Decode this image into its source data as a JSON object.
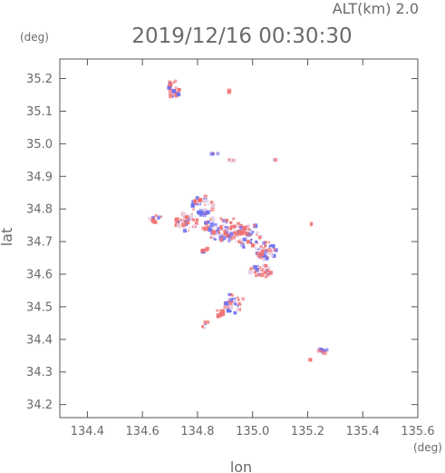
{
  "chart_data": {
    "type": "scatter",
    "title": "2019/12/16 00:30:30",
    "altitude_label": "ALT(km)  2.0",
    "xlabel": "lon",
    "ylabel": "lat",
    "x_unit": "(deg)",
    "y_unit": "(deg)",
    "xlim": [
      134.3,
      135.6
    ],
    "ylim": [
      34.16,
      35.26
    ],
    "x_ticks": [
      134.4,
      134.6,
      134.8,
      135.0,
      135.2,
      135.4,
      135.6
    ],
    "x_tick_labels": [
      "134.4",
      "134.6",
      "134.8",
      "135.0",
      "135.2",
      "135.4",
      "135.6"
    ],
    "y_ticks": [
      34.2,
      34.3,
      34.4,
      34.5,
      34.6,
      34.7,
      34.8,
      34.9,
      35.0,
      35.1,
      35.2
    ],
    "y_tick_labels": [
      "34.2",
      "34.3",
      "34.4",
      "34.5",
      "34.6",
      "34.7",
      "34.8",
      "34.9",
      "35.0",
      "35.1",
      "35.2"
    ],
    "colors": {
      "negative": "#6f6ff0",
      "positive": "#f07070",
      "weak": "#e6cfe6",
      "axis": "#555555",
      "text": "#6a6a6a"
    },
    "clusters": [
      {
        "lon": 134.71,
        "lat": 35.165,
        "rlon": 0.025,
        "rlat": 0.03,
        "n": 26,
        "bias": 0.45,
        "mix": 0.55
      },
      {
        "lon": 134.915,
        "lat": 35.16,
        "rlon": 0.004,
        "rlat": 0.004,
        "n": 2,
        "bias": 0.0,
        "mix": 0.2
      },
      {
        "lon": 134.86,
        "lat": 34.97,
        "rlon": 0.014,
        "rlat": 0.005,
        "n": 6,
        "bias": 0.1,
        "mix": 0.4
      },
      {
        "lon": 134.925,
        "lat": 34.95,
        "rlon": 0.01,
        "rlat": 0.004,
        "n": 5,
        "bias": 0.8,
        "mix": 0.3
      },
      {
        "lon": 135.08,
        "lat": 34.95,
        "rlon": 0.008,
        "rlat": 0.004,
        "n": 4,
        "bias": 0.7,
        "mix": 0.3
      },
      {
        "lon": 134.82,
        "lat": 34.81,
        "rlon": 0.04,
        "rlat": 0.03,
        "n": 40,
        "bias": 0.15,
        "mix": 0.5
      },
      {
        "lon": 134.65,
        "lat": 34.77,
        "rlon": 0.025,
        "rlat": 0.012,
        "n": 14,
        "bias": 0.2,
        "mix": 0.45
      },
      {
        "lon": 134.76,
        "lat": 34.76,
        "rlon": 0.04,
        "rlat": 0.03,
        "n": 45,
        "bias": 0.5,
        "mix": 0.55
      },
      {
        "lon": 134.89,
        "lat": 34.74,
        "rlon": 0.07,
        "rlat": 0.04,
        "n": 90,
        "bias": 0.3,
        "mix": 0.7
      },
      {
        "lon": 134.98,
        "lat": 34.72,
        "rlon": 0.05,
        "rlat": 0.04,
        "n": 55,
        "bias": 0.4,
        "mix": 0.6
      },
      {
        "lon": 135.05,
        "lat": 34.67,
        "rlon": 0.04,
        "rlat": 0.03,
        "n": 40,
        "bias": 0.35,
        "mix": 0.6
      },
      {
        "lon": 135.03,
        "lat": 34.61,
        "rlon": 0.04,
        "rlat": 0.02,
        "n": 35,
        "bias": 0.3,
        "mix": 0.6
      },
      {
        "lon": 134.83,
        "lat": 34.67,
        "rlon": 0.012,
        "rlat": 0.012,
        "n": 6,
        "bias": 0.7,
        "mix": 0.3
      },
      {
        "lon": 135.21,
        "lat": 34.755,
        "rlon": 0.008,
        "rlat": 0.005,
        "n": 3,
        "bias": 0.9,
        "mix": 0.2
      },
      {
        "lon": 134.93,
        "lat": 34.51,
        "rlon": 0.04,
        "rlat": 0.03,
        "n": 40,
        "bias": 0.05,
        "mix": 0.5
      },
      {
        "lon": 134.88,
        "lat": 34.48,
        "rlon": 0.015,
        "rlat": 0.012,
        "n": 10,
        "bias": 0.75,
        "mix": 0.3
      },
      {
        "lon": 134.83,
        "lat": 34.445,
        "rlon": 0.015,
        "rlat": 0.015,
        "n": 9,
        "bias": 0.7,
        "mix": 0.3
      },
      {
        "lon": 135.255,
        "lat": 34.365,
        "rlon": 0.018,
        "rlat": 0.01,
        "n": 12,
        "bias": -0.1,
        "mix": 0.2
      },
      {
        "lon": 135.215,
        "lat": 34.34,
        "rlon": 0.008,
        "rlat": 0.005,
        "n": 3,
        "bias": 0.8,
        "mix": 0.3
      }
    ]
  }
}
